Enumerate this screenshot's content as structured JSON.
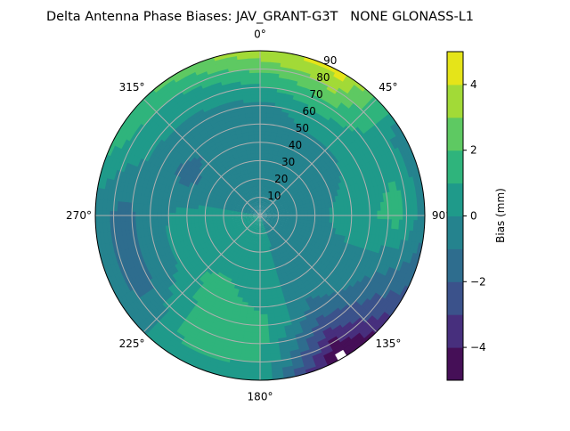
{
  "chart_data": {
    "type": "heatmap",
    "subtype": "polar-filled-contour",
    "title": "Delta Antenna Phase Biases: JAV_GRANT-G3T   NONE GLONASS-L1",
    "angular_direction": "clockwise",
    "zero_location": "top",
    "angular_ticks": [
      "0°",
      "45°",
      "90°",
      "135°",
      "180°",
      "225°",
      "270°",
      "315°"
    ],
    "radial_ticks": [
      "10",
      "20",
      "30",
      "40",
      "50",
      "60",
      "70",
      "80",
      "90"
    ],
    "radial_range": [
      0,
      90
    ],
    "grid": true,
    "azimuth_deg": [
      0,
      30,
      60,
      90,
      120,
      150,
      180,
      210,
      240,
      270,
      300,
      330
    ],
    "zenith_deg": [
      0,
      15,
      30,
      45,
      60,
      75,
      90
    ],
    "values_mm": [
      [
        0.0,
        -0.5,
        -0.5,
        -0.5,
        -0.3,
        1.5,
        3.8
      ],
      [
        0.0,
        -0.5,
        -0.5,
        -0.5,
        0.5,
        2.5,
        4.5
      ],
      [
        0.0,
        -0.5,
        -0.5,
        -0.3,
        0.5,
        0.5,
        -0.5
      ],
      [
        0.0,
        -0.5,
        -0.5,
        0.5,
        0.8,
        1.5,
        -0.5
      ],
      [
        0.0,
        -0.5,
        -0.3,
        -0.5,
        -0.5,
        -1.5,
        -2.2
      ],
      [
        0.0,
        -0.3,
        -0.5,
        -0.5,
        -1.5,
        -3.5,
        -5.5
      ],
      [
        0.0,
        0.5,
        0.5,
        0.5,
        1.5,
        1.2,
        0.5
      ],
      [
        0.0,
        0.5,
        0.5,
        1.5,
        1.5,
        1.5,
        0.5
      ],
      [
        0.0,
        0.5,
        0.5,
        0.5,
        -0.5,
        -1.5,
        -0.5
      ],
      [
        0.0,
        0.3,
        0.3,
        0.3,
        -0.5,
        -1.5,
        -0.5
      ],
      [
        0.0,
        -0.5,
        -0.5,
        -1.5,
        -0.5,
        0.5,
        1.5
      ],
      [
        0.0,
        -0.5,
        -0.5,
        -0.5,
        -0.3,
        0.5,
        2.5
      ]
    ],
    "colorbar": {
      "label": "Bias (mm)",
      "range": [
        -5,
        5
      ],
      "levels": [
        -5,
        -4,
        -3,
        -2,
        -1,
        0,
        1,
        2,
        3,
        4,
        5
      ],
      "tick_labels": [
        "−4",
        "−2",
        "0",
        "2",
        "4"
      ],
      "tick_values": [
        -4,
        -2,
        0,
        2,
        4
      ],
      "colormap": "viridis",
      "colors": [
        "#450f57",
        "#472f7d",
        "#3b528b",
        "#2e6d8e",
        "#25838e",
        "#1f9a8a",
        "#2fb47c",
        "#5ec962",
        "#a2da37",
        "#e5e419"
      ]
    }
  }
}
